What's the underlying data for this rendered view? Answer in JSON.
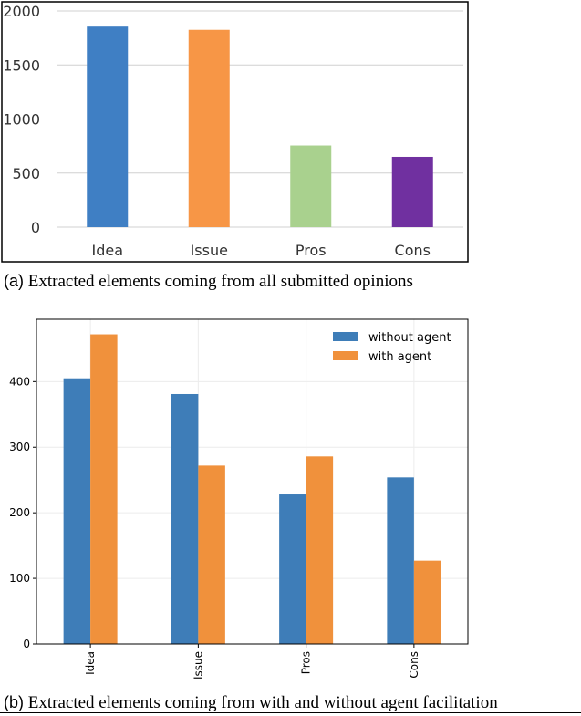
{
  "chart_data": [
    {
      "type": "bar",
      "categories": [
        "Idea",
        "Issue",
        "Pros",
        "Cons"
      ],
      "values": [
        1855,
        1825,
        755,
        650
      ],
      "colors": [
        "#3f7fc4",
        "#f79646",
        "#a9d18e",
        "#7030a0"
      ],
      "yticks": [
        0,
        500,
        1000,
        1500,
        2000
      ],
      "ylim": [
        0,
        2000
      ],
      "grid": true,
      "legend": "none"
    },
    {
      "type": "bar",
      "categories": [
        "Idea",
        "Issue",
        "Pros",
        "Cons"
      ],
      "series": [
        {
          "name": "without agent",
          "values": [
            405,
            381,
            228,
            254
          ],
          "color": "#3e7db8"
        },
        {
          "name": "with agent",
          "values": [
            472,
            272,
            286,
            127
          ],
          "color": "#f0913c"
        }
      ],
      "yticks": [
        0,
        100,
        200,
        300,
        400
      ],
      "ylim": [
        0,
        495
      ],
      "grid": true,
      "legend": "top-right"
    }
  ],
  "captions": {
    "a_tag": "(a)",
    "a_text": " Extracted elements coming from all submitted opinions",
    "b_tag": "(b)",
    "b_text": " Extracted elements coming from with and without agent facilitation"
  }
}
